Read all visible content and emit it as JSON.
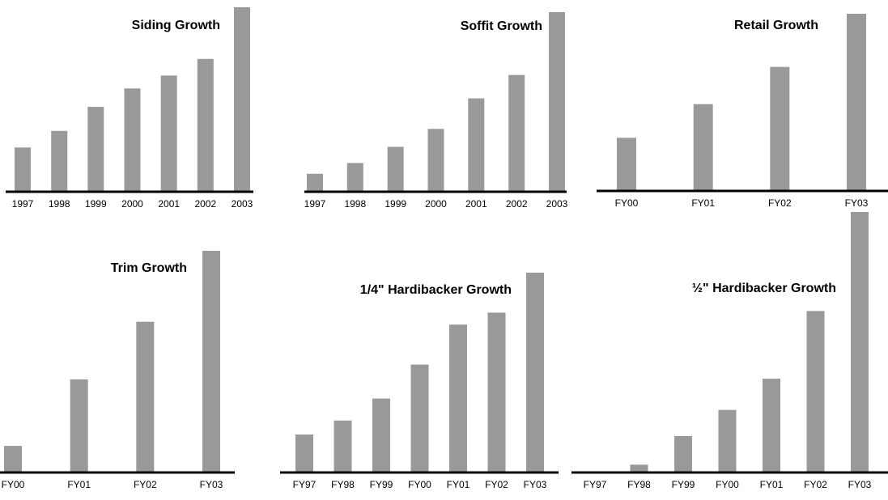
{
  "colors": {
    "bar": "#999999",
    "axis": "#000000",
    "background": "#ffffff"
  },
  "chart_data": [
    {
      "type": "bar",
      "title": "Siding Growth",
      "xlabel": "",
      "ylabel": "",
      "categories": [
        "1997",
        "1998",
        "1999",
        "2000",
        "2001",
        "2002",
        "2003"
      ],
      "values": [
        24,
        33,
        46,
        56,
        63,
        72,
        100
      ],
      "ylim": [
        0,
        100
      ],
      "grid": false
    },
    {
      "type": "bar",
      "title": "Soffit Growth",
      "xlabel": "",
      "ylabel": "",
      "categories": [
        "1997",
        "1998",
        "1999",
        "2000",
        "2001",
        "2002",
        "2003"
      ],
      "values": [
        10,
        16,
        25,
        35,
        52,
        65,
        100
      ],
      "ylim": [
        0,
        100
      ],
      "grid": false
    },
    {
      "type": "bar",
      "title": "Retail Growth",
      "xlabel": "",
      "ylabel": "",
      "categories": [
        "FY00",
        "FY01",
        "FY02",
        "FY03"
      ],
      "values": [
        30,
        49,
        70,
        100
      ],
      "ylim": [
        0,
        100
      ],
      "grid": false
    },
    {
      "type": "bar",
      "title": "Trim Growth",
      "xlabel": "",
      "ylabel": "",
      "categories": [
        "FY00",
        "FY01",
        "FY02",
        "FY03"
      ],
      "values": [
        12,
        42,
        68,
        100
      ],
      "ylim": [
        0,
        100
      ],
      "grid": false
    },
    {
      "type": "bar",
      "title": "1/4\" Hardibacker Growth",
      "xlabel": "",
      "ylabel": "",
      "categories": [
        "FY97",
        "FY98",
        "FY99",
        "FY00",
        "FY01",
        "FY02",
        "FY03"
      ],
      "values": [
        19,
        26,
        37,
        54,
        74,
        80,
        100
      ],
      "ylim": [
        0,
        100
      ],
      "grid": false
    },
    {
      "type": "bar",
      "title": "½\" Hardibacker Growth",
      "xlabel": "",
      "ylabel": "",
      "categories": [
        "FY97",
        "FY98",
        "FY99",
        "FY00",
        "FY01",
        "FY02",
        "FY03"
      ],
      "values": [
        0,
        3,
        14,
        24,
        36,
        62,
        100
      ],
      "ylim": [
        0,
        100
      ],
      "grid": false
    }
  ]
}
